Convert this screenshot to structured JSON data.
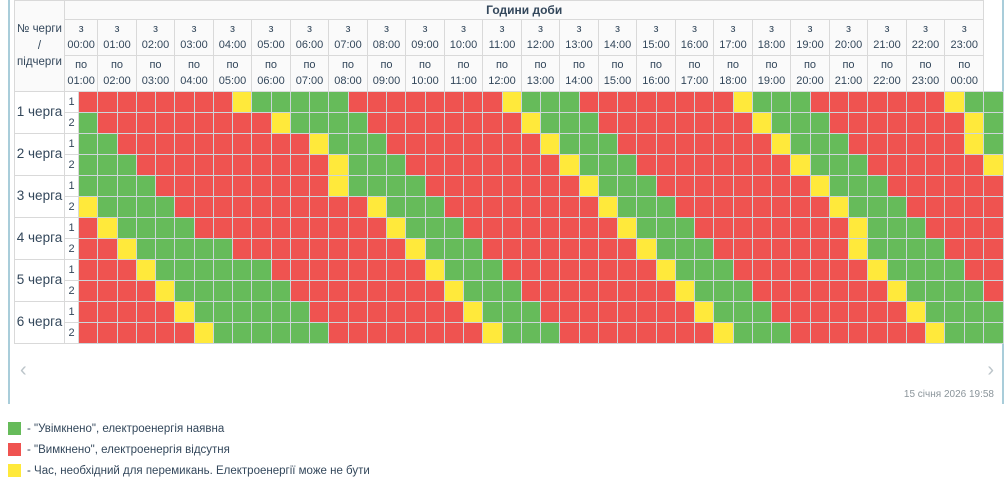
{
  "header": {
    "title": "Години доби",
    "corner": "№ черги / підчерги",
    "hour_from_prefix": "з",
    "hour_to_prefix": "по",
    "hours": [
      {
        "from": "00:00",
        "to": "01:00"
      },
      {
        "from": "01:00",
        "to": "02:00"
      },
      {
        "from": "02:00",
        "to": "03:00"
      },
      {
        "from": "03:00",
        "to": "04:00"
      },
      {
        "from": "04:00",
        "to": "05:00"
      },
      {
        "from": "05:00",
        "to": "06:00"
      },
      {
        "from": "06:00",
        "to": "07:00"
      },
      {
        "from": "07:00",
        "to": "08:00"
      },
      {
        "from": "08:00",
        "to": "09:00"
      },
      {
        "from": "09:00",
        "to": "10:00"
      },
      {
        "from": "10:00",
        "to": "11:00"
      },
      {
        "from": "11:00",
        "to": "12:00"
      },
      {
        "from": "12:00",
        "to": "13:00"
      },
      {
        "from": "13:00",
        "to": "14:00"
      },
      {
        "from": "14:00",
        "to": "15:00"
      },
      {
        "from": "15:00",
        "to": "16:00"
      },
      {
        "from": "16:00",
        "to": "17:00"
      },
      {
        "from": "17:00",
        "to": "18:00"
      },
      {
        "from": "18:00",
        "to": "19:00"
      },
      {
        "from": "19:00",
        "to": "20:00"
      },
      {
        "from": "20:00",
        "to": "21:00"
      },
      {
        "from": "21:00",
        "to": "22:00"
      },
      {
        "from": "22:00",
        "to": "23:00"
      },
      {
        "from": "23:00",
        "to": "00:00"
      }
    ]
  },
  "cell_states": {
    "G": "on",
    "R": "off",
    "Y": "switching"
  },
  "colors": {
    "G": "#66bb5a",
    "R": "#ef5350",
    "Y": "#ffe93b"
  },
  "slot_minutes": 30,
  "queues": [
    {
      "label": "1 черга",
      "sub": [
        {
          "label": "1",
          "cells": "RRRRRRRRYGGGGGRRRRRRRRYGGGRRRRRRRRYGGGRRRRRRRYGG"
        },
        {
          "label": "2",
          "cells": "GRRRRRRRRRYGGGGRRRRRRRRYGGGRRRRRRRRYGGGRRRRRRRYG"
        }
      ]
    },
    {
      "label": "2 черга",
      "sub": [
        {
          "label": "1",
          "cells": "GGRRRRRRRRRRYGGGRRRRRRRRYGGGRRRRRRRRYGGGRRRRRRYG"
        },
        {
          "label": "2",
          "cells": "GGGRRRRRRRRRRYGGGRRRRRRRRYGGGRRRRRRRRYGGGRRRRRRY"
        }
      ]
    },
    {
      "label": "3 черга",
      "sub": [
        {
          "label": "1",
          "cells": "GGGGRRRRRRRRRYGGGGRRRRRRRRYGGGRRRRRRRRYGGGRRRRRR"
        },
        {
          "label": "2",
          "cells": "YGGGGRRRRRRRRRRYGGGRRRRRRRRYGGGRRRRRRRRYGGGRRRRR"
        }
      ]
    },
    {
      "label": "4 черга",
      "sub": [
        {
          "label": "1",
          "cells": "RYGGGGRRRRRRRRRRYGGGRRRRRRRRYGGGRRRRRRRRYGGGRRRR"
        },
        {
          "label": "2",
          "cells": "RRYGGGGGRRRRRRRRRYGGGRRRRRRRRYGGGRRRRRRRYGGGGRRR"
        }
      ]
    },
    {
      "label": "5 черга",
      "sub": [
        {
          "label": "1",
          "cells": "RRRYGGGGGGRRRRRRRRYGGGRRRRRRRRYGGGRRRRRRRYGGGGRR"
        },
        {
          "label": "2",
          "cells": "RRRRYGGGGGGRRRRRRRRYGGGRRRRRRRRYGGGRRRRRRRYGGGGR"
        }
      ]
    },
    {
      "label": "6 черга",
      "sub": [
        {
          "label": "1",
          "cells": "RRRRRYGGGGGGRRRRRRRRYGGGRRRRRRRRYGGGRRRRRRRYGGGG"
        },
        {
          "label": "2",
          "cells": "RRRRRRYGGGGGGRRRRRRRRYGGGRRRRRRRRYGGGRRRRRRRYGGG"
        }
      ]
    }
  ],
  "footer": {
    "prev_icon": "‹",
    "next_icon": "›",
    "timestamp": "15 січня 2026 19:58"
  },
  "legend": [
    {
      "key": "G",
      "text": "- \"Увімкнено\", електроенергія наявна"
    },
    {
      "key": "R",
      "text": "- \"Вимкнено\", електроенергія відсутня"
    },
    {
      "key": "Y",
      "text": "- Час, необхідний для перемикань. Електроенергії може не бути"
    }
  ]
}
